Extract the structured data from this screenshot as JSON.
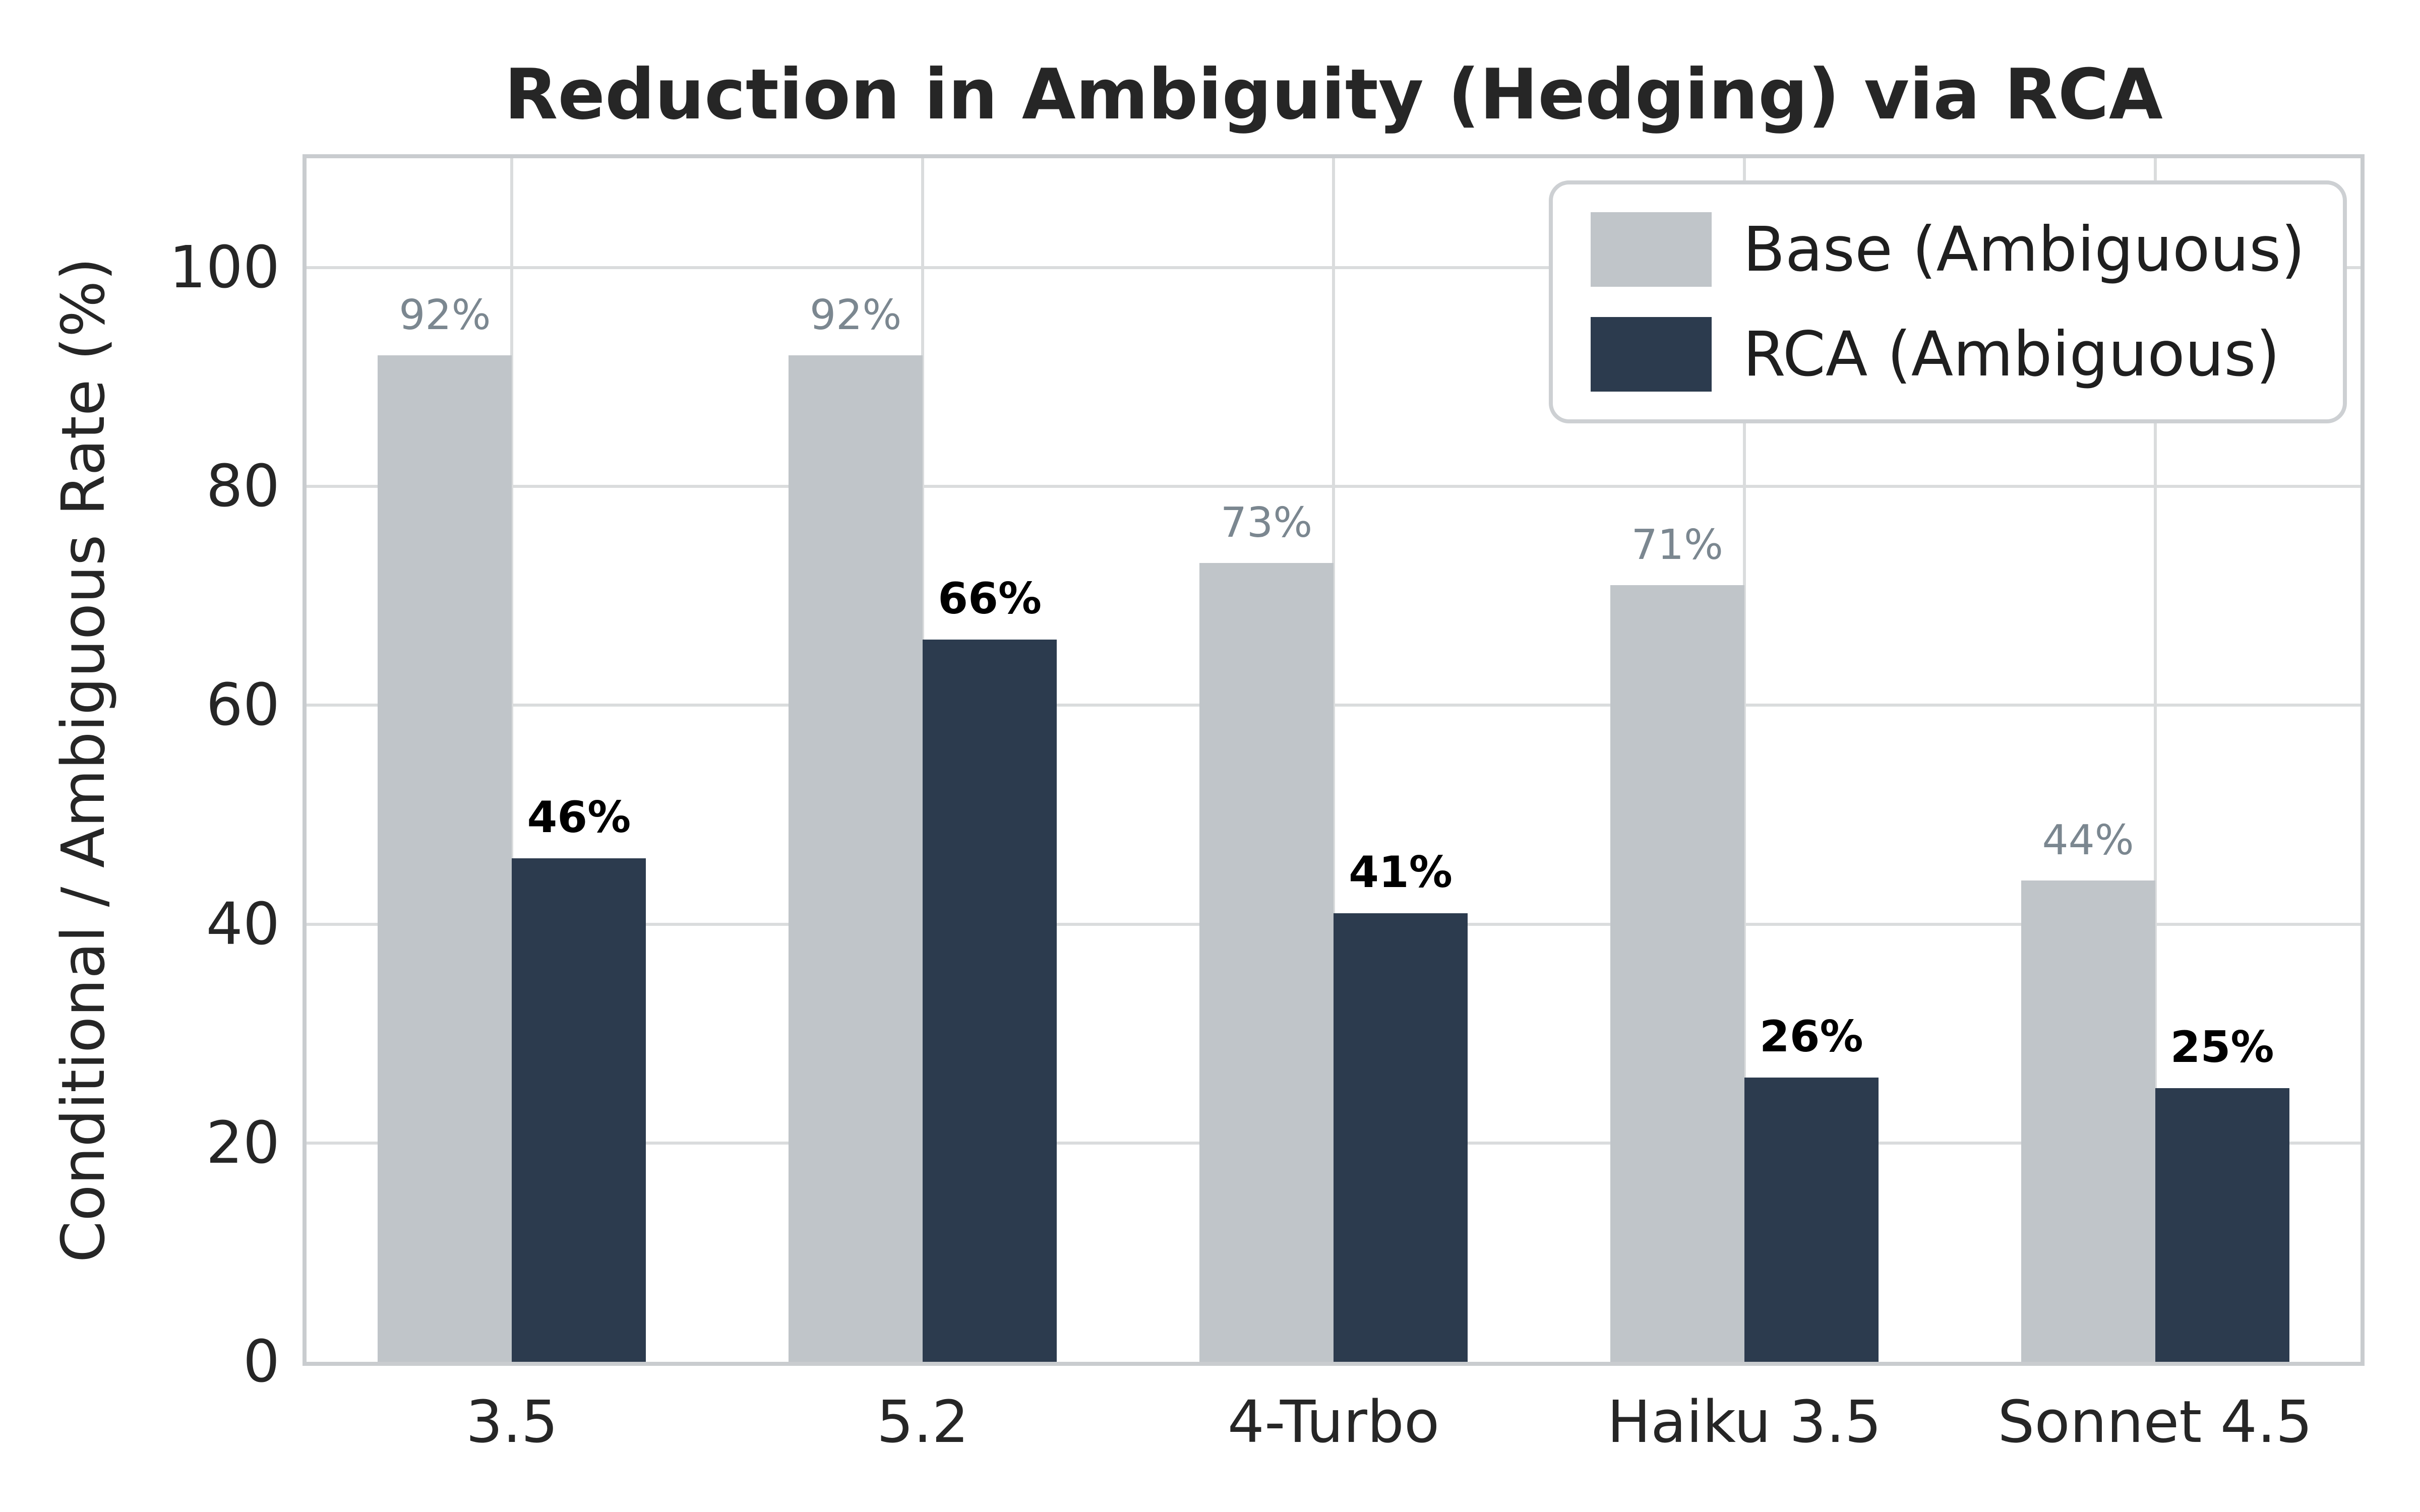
{
  "title": "Reduction in Ambiguity (Hedging) via RCA",
  "chart_data": {
    "type": "bar",
    "title": "Reduction in Ambiguity (Hedging) via RCA",
    "ylabel": "Conditional / Ambiguous Rate (%)",
    "xlabel": "",
    "categories": [
      "3.5",
      "5.2",
      "4-Turbo",
      "Haiku 3.5",
      "Sonnet 4.5"
    ],
    "series": [
      {
        "name": "Base (Ambiguous)",
        "color": "#c0c5c9",
        "label_color": "#7b8790",
        "values": [
          92,
          92,
          73,
          71,
          44
        ],
        "bar_labels": [
          "92%",
          "92%",
          "73%",
          "71%",
          "44%"
        ]
      },
      {
        "name": "RCA (Ambiguous)",
        "color": "#2c3b4e",
        "label_color": "#000000",
        "values": [
          46,
          66,
          41,
          26,
          25
        ],
        "bar_labels": [
          "46%",
          "66%",
          "41%",
          "26%",
          "25%"
        ]
      }
    ],
    "ylim": [
      0,
      110
    ],
    "yticks": [
      0,
      20,
      40,
      60,
      80,
      100
    ],
    "grid": true,
    "legend_position": "upper right"
  },
  "colors": {
    "background": "#ffffff",
    "grid": "#dadcdd",
    "spine": "#c9cccf",
    "tick_text": "#262626",
    "title_text": "#262626"
  }
}
